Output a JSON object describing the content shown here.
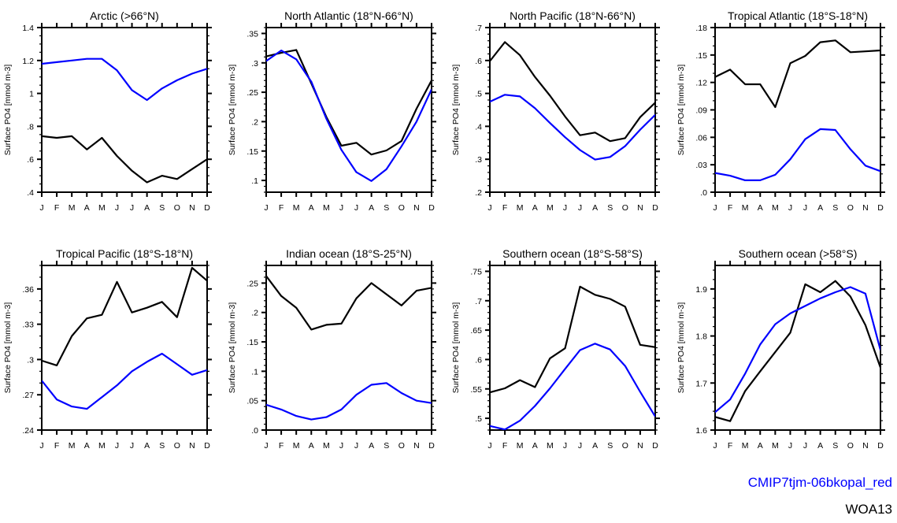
{
  "figure": {
    "months": [
      "J",
      "F",
      "M",
      "A",
      "M",
      "J",
      "J",
      "A",
      "S",
      "O",
      "N",
      "D"
    ],
    "ylabel": "Surface PO4 [mmol m-3]",
    "legend": [
      {
        "label": "CMIP7tjm-06bkopal_red",
        "color": "#0000ff"
      },
      {
        "label": "WOA13",
        "color": "#000000"
      }
    ]
  },
  "chart_data": [
    {
      "type": "line",
      "title": "Arctic (>66°N)",
      "xlabel": "",
      "ylabel": "Surface PO4 [mmol m-3]",
      "x": [
        "J",
        "F",
        "M",
        "A",
        "M",
        "J",
        "J",
        "A",
        "S",
        "O",
        "N",
        "D"
      ],
      "ylim": [
        0.4,
        1.4
      ],
      "yticks": [
        0.4,
        0.6,
        0.8,
        1.0,
        1.2,
        1.4
      ],
      "ytick_labels": [
        ".4",
        ".6",
        ".8",
        "1",
        "1.2",
        "1.4"
      ],
      "minor_step": 0.05,
      "series": [
        {
          "name": "CMIP7tjm-06bkopal_red",
          "color": "#0000ff",
          "values": [
            1.18,
            1.19,
            1.2,
            1.21,
            1.21,
            1.14,
            1.02,
            0.96,
            1.03,
            1.08,
            1.12,
            1.15
          ]
        },
        {
          "name": "WOA13",
          "color": "#000000",
          "values": [
            0.74,
            0.73,
            0.74,
            0.66,
            0.73,
            0.62,
            0.53,
            0.46,
            0.5,
            0.48,
            0.54,
            0.6
          ]
        }
      ]
    },
    {
      "type": "line",
      "title": "North Atlantic (18°N-66°N)",
      "xlabel": "",
      "ylabel": "Surface PO4 [mmol m-3]",
      "x": [
        "J",
        "F",
        "M",
        "A",
        "M",
        "J",
        "J",
        "A",
        "S",
        "O",
        "N",
        "D"
      ],
      "ylim": [
        0.08,
        0.36
      ],
      "yticks": [
        0.1,
        0.15,
        0.2,
        0.25,
        0.3,
        0.35
      ],
      "ytick_labels": [
        ".1",
        ".15",
        ".2",
        ".25",
        ".3",
        ".35"
      ],
      "minor_step": 0.01,
      "series": [
        {
          "name": "CMIP7tjm-06bkopal_red",
          "color": "#0000ff",
          "values": [
            0.303,
            0.321,
            0.306,
            0.268,
            0.205,
            0.152,
            0.114,
            0.099,
            0.119,
            0.158,
            0.2,
            0.255
          ]
        },
        {
          "name": "WOA13",
          "color": "#000000",
          "values": [
            0.311,
            0.317,
            0.322,
            0.265,
            0.208,
            0.159,
            0.164,
            0.144,
            0.151,
            0.167,
            0.222,
            0.27
          ]
        }
      ]
    },
    {
      "type": "line",
      "title": "North Pacific (18°N-66°N)",
      "xlabel": "",
      "ylabel": "Surface PO4 [mmol m-3]",
      "x": [
        "J",
        "F",
        "M",
        "A",
        "M",
        "J",
        "J",
        "A",
        "S",
        "O",
        "N",
        "D"
      ],
      "ylim": [
        0.2,
        0.7
      ],
      "yticks": [
        0.2,
        0.3,
        0.4,
        0.5,
        0.6,
        0.7
      ],
      "ytick_labels": [
        ".2",
        ".3",
        ".4",
        ".5",
        ".6",
        ".7"
      ],
      "minor_step": 0.02,
      "series": [
        {
          "name": "CMIP7tjm-06bkopal_red",
          "color": "#0000ff",
          "values": [
            0.475,
            0.496,
            0.491,
            0.455,
            0.41,
            0.367,
            0.328,
            0.299,
            0.307,
            0.34,
            0.39,
            0.435
          ]
        },
        {
          "name": "WOA13",
          "color": "#000000",
          "values": [
            0.598,
            0.656,
            0.616,
            0.55,
            0.493,
            0.43,
            0.373,
            0.381,
            0.355,
            0.364,
            0.428,
            0.472
          ]
        }
      ]
    },
    {
      "type": "line",
      "title": "Tropical Atlantic (18°S-18°N)",
      "xlabel": "",
      "ylabel": "Surface PO4 [mmol m-3]",
      "x": [
        "J",
        "F",
        "M",
        "A",
        "M",
        "J",
        "J",
        "A",
        "S",
        "O",
        "N",
        "D"
      ],
      "ylim": [
        0.0,
        0.18
      ],
      "yticks": [
        0.0,
        0.03,
        0.06,
        0.09,
        0.12,
        0.15,
        0.18
      ],
      "ytick_labels": [
        ".0",
        ".03",
        ".06",
        ".09",
        ".12",
        ".15",
        ".18"
      ],
      "minor_step": 0.01,
      "series": [
        {
          "name": "CMIP7tjm-06bkopal_red",
          "color": "#0000ff",
          "values": [
            0.021,
            0.018,
            0.013,
            0.013,
            0.019,
            0.036,
            0.058,
            0.069,
            0.068,
            0.047,
            0.029,
            0.023
          ]
        },
        {
          "name": "WOA13",
          "color": "#000000",
          "values": [
            0.126,
            0.134,
            0.118,
            0.118,
            0.093,
            0.141,
            0.149,
            0.164,
            0.166,
            0.153,
            0.154,
            0.155
          ]
        }
      ]
    },
    {
      "type": "line",
      "title": "Tropical Pacific (18°S-18°N)",
      "xlabel": "",
      "ylabel": "Surface PO4 [mmol m-3]",
      "x": [
        "J",
        "F",
        "M",
        "A",
        "M",
        "J",
        "J",
        "A",
        "S",
        "O",
        "N",
        "D"
      ],
      "ylim": [
        0.24,
        0.38
      ],
      "yticks": [
        0.24,
        0.27,
        0.3,
        0.33,
        0.36
      ],
      "ytick_labels": [
        ".24",
        ".27",
        ".3",
        ".33",
        ".36"
      ],
      "minor_step": 0.01,
      "series": [
        {
          "name": "CMIP7tjm-06bkopal_red",
          "color": "#0000ff",
          "values": [
            0.282,
            0.266,
            0.26,
            0.258,
            0.268,
            0.278,
            0.29,
            0.298,
            0.305,
            0.296,
            0.287,
            0.291
          ]
        },
        {
          "name": "WOA13",
          "color": "#000000",
          "values": [
            0.299,
            0.295,
            0.32,
            0.335,
            0.338,
            0.366,
            0.34,
            0.344,
            0.349,
            0.336,
            0.378,
            0.367
          ]
        }
      ]
    },
    {
      "type": "line",
      "title": "Indian ocean (18°S-25°N)",
      "xlabel": "",
      "ylabel": "Surface PO4 [mmol m-3]",
      "x": [
        "J",
        "F",
        "M",
        "A",
        "M",
        "J",
        "J",
        "A",
        "S",
        "O",
        "N",
        "D"
      ],
      "ylim": [
        0.0,
        0.28
      ],
      "yticks": [
        0.0,
        0.05,
        0.1,
        0.15,
        0.2,
        0.25
      ],
      "ytick_labels": [
        ".0",
        ".05",
        ".1",
        ".15",
        ".2",
        ".25"
      ],
      "minor_step": 0.01,
      "series": [
        {
          "name": "CMIP7tjm-06bkopal_red",
          "color": "#0000ff",
          "values": [
            0.043,
            0.035,
            0.024,
            0.018,
            0.022,
            0.035,
            0.06,
            0.077,
            0.08,
            0.063,
            0.05,
            0.046
          ]
        },
        {
          "name": "WOA13",
          "color": "#000000",
          "values": [
            0.262,
            0.228,
            0.208,
            0.171,
            0.179,
            0.181,
            0.224,
            0.25,
            0.231,
            0.212,
            0.237,
            0.242
          ]
        }
      ]
    },
    {
      "type": "line",
      "title": "Southern ocean (18°S-58°S)",
      "xlabel": "",
      "ylabel": "Surface PO4 [mmol m-3]",
      "x": [
        "J",
        "F",
        "M",
        "A",
        "M",
        "J",
        "J",
        "A",
        "S",
        "O",
        "N",
        "D"
      ],
      "ylim": [
        0.48,
        0.76
      ],
      "yticks": [
        0.5,
        0.55,
        0.6,
        0.65,
        0.7,
        0.75
      ],
      "ytick_labels": [
        ".5",
        ".55",
        ".6",
        ".65",
        ".7",
        ".75"
      ],
      "minor_step": 0.01,
      "series": [
        {
          "name": "CMIP7tjm-06bkopal_red",
          "color": "#0000ff",
          "values": [
            0.487,
            0.481,
            0.496,
            0.521,
            0.551,
            0.584,
            0.616,
            0.627,
            0.617,
            0.589,
            0.545,
            0.503
          ]
        },
        {
          "name": "WOA13",
          "color": "#000000",
          "values": [
            0.544,
            0.551,
            0.565,
            0.553,
            0.602,
            0.619,
            0.724,
            0.71,
            0.703,
            0.69,
            0.625,
            0.621
          ]
        }
      ]
    },
    {
      "type": "line",
      "title": "Southern ocean (>58°S)",
      "xlabel": "",
      "ylabel": "Surface PO4 [mmol m-3]",
      "x": [
        "J",
        "F",
        "M",
        "A",
        "M",
        "J",
        "J",
        "A",
        "S",
        "O",
        "N",
        "D"
      ],
      "ylim": [
        1.6,
        1.95
      ],
      "yticks": [
        1.6,
        1.7,
        1.8,
        1.9
      ],
      "ytick_labels": [
        "1.6",
        "1.7",
        "1.8",
        "1.9"
      ],
      "minor_step": 0.02,
      "series": [
        {
          "name": "CMIP7tjm-06bkopal_red",
          "color": "#0000ff",
          "values": [
            1.638,
            1.665,
            1.72,
            1.782,
            1.825,
            1.848,
            1.864,
            1.88,
            1.893,
            1.904,
            1.89,
            1.77
          ]
        },
        {
          "name": "WOA13",
          "color": "#000000",
          "values": [
            1.628,
            1.619,
            1.683,
            1.725,
            1.766,
            1.807,
            1.91,
            1.893,
            1.917,
            1.884,
            1.823,
            1.733
          ]
        }
      ]
    }
  ]
}
